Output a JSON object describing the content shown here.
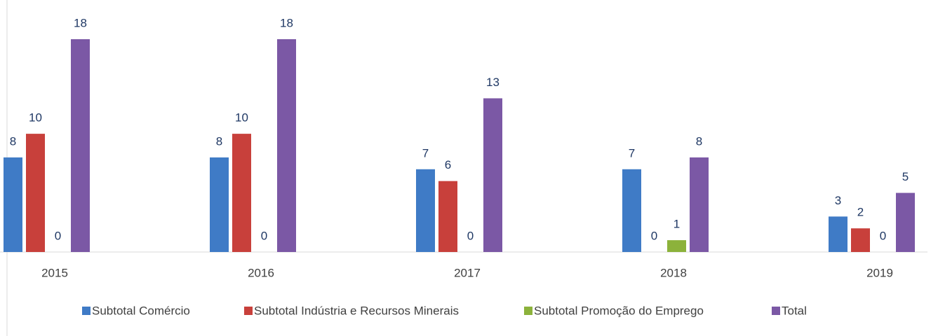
{
  "chart_data": {
    "type": "bar",
    "categories": [
      "2015",
      "2016",
      "2017",
      "2018",
      "2019"
    ],
    "series": [
      {
        "name": "Subtotal Comércio",
        "color": "#3f7bc6",
        "values": [
          8,
          8,
          7,
          7,
          3
        ]
      },
      {
        "name": "Subtotal Indústria e Recursos Minerais",
        "color": "#c8403b",
        "values": [
          10,
          10,
          6,
          0,
          2
        ]
      },
      {
        "name": "Subtotal Promoção do Emprego",
        "color": "#8cb23b",
        "values": [
          0,
          0,
          0,
          1,
          0
        ]
      },
      {
        "name": "Total",
        "color": "#7b58a5",
        "values": [
          18,
          18,
          13,
          8,
          5
        ]
      }
    ]
  }
}
